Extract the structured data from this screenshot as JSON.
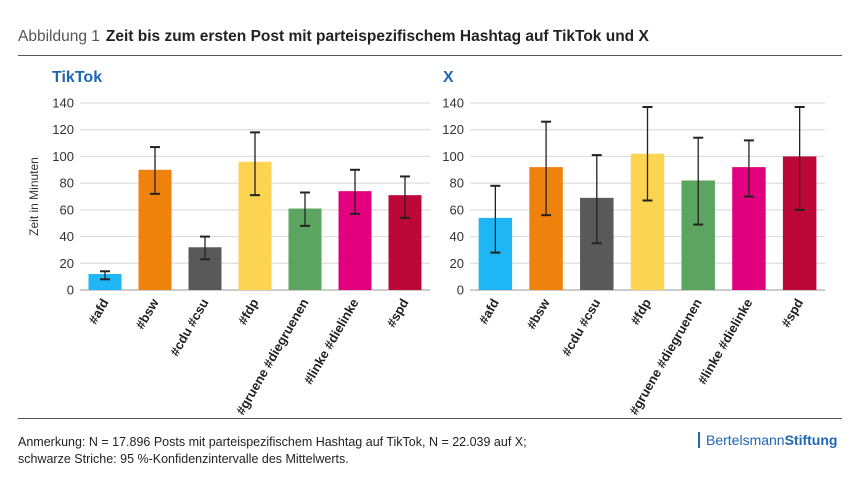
{
  "figure_label": "Abbildung 1",
  "title": "Zeit bis zum ersten Post mit parteispezifischem Hashtag auf TikTok und X",
  "note_line1": "Anmerkung: N = 17.896 Posts mit parteispezifischem Hashtag auf TikTok, N = 22.039 auf X;",
  "note_line2": "schwarze Striche: 95 %-Konfidenzintervalle des Mittelwerts.",
  "logo": {
    "part1": "Bertelsmann",
    "part2": "Stiftung"
  },
  "chart_data": [
    {
      "type": "bar",
      "title": "TikTok",
      "ylabel": "Zeit in Minuten",
      "ylim": [
        0,
        140
      ],
      "yticks": [
        0,
        20,
        40,
        60,
        80,
        100,
        120,
        140
      ],
      "categories": [
        "#afd",
        "#bsw",
        "#cdu #csu",
        "#fdp",
        "#gruene #diegruenen",
        "#linke #dielinke",
        "#spd"
      ],
      "values": [
        12,
        90,
        32,
        96,
        61,
        74,
        71
      ],
      "ci_low": [
        8,
        72,
        23,
        71,
        48,
        57,
        54
      ],
      "ci_high": [
        14,
        107,
        40,
        118,
        73,
        90,
        85
      ],
      "colors": [
        "#1fb6f5",
        "#ee820c",
        "#595959",
        "#fdd452",
        "#5ba561",
        "#e3007e",
        "#bb0839"
      ],
      "grid": true
    },
    {
      "type": "bar",
      "title": "X",
      "ylabel": "",
      "ylim": [
        0,
        140
      ],
      "yticks": [
        0,
        20,
        40,
        60,
        80,
        100,
        120,
        140
      ],
      "categories": [
        "#afd",
        "#bsw",
        "#cdu #csu",
        "#fdp",
        "#gruene #diegruenen",
        "#linke #dielinke",
        "#spd"
      ],
      "values": [
        54,
        92,
        69,
        102,
        82,
        92,
        100
      ],
      "ci_low": [
        28,
        56,
        35,
        67,
        49,
        70,
        60
      ],
      "ci_high": [
        78,
        126,
        101,
        137,
        114,
        112,
        137
      ],
      "colors": [
        "#1fb6f5",
        "#ee820c",
        "#595959",
        "#fdd452",
        "#5ba561",
        "#e3007e",
        "#bb0839"
      ],
      "grid": true
    }
  ]
}
